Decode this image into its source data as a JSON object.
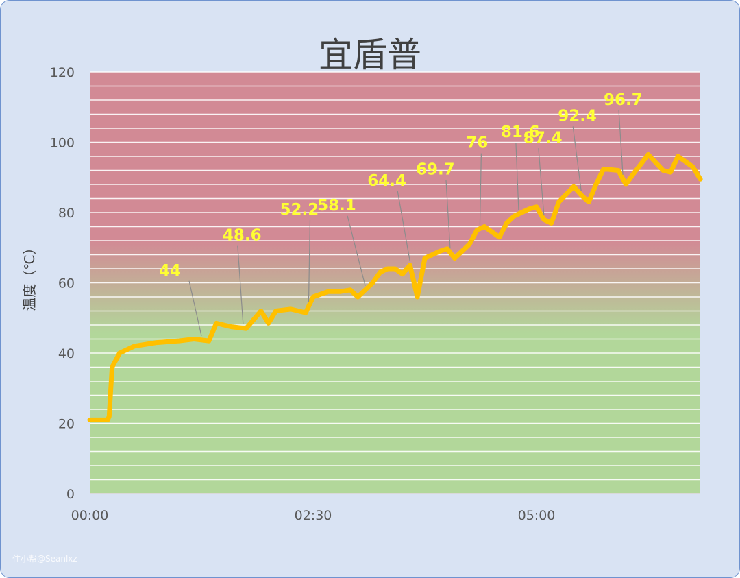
{
  "chart_data": {
    "type": "line",
    "title": "宜盾普",
    "ylabel": "温度（℃）",
    "xlabel": "",
    "ylim": [
      0,
      120
    ],
    "yticks": [
      "0",
      "20",
      "40",
      "60",
      "80",
      "100",
      "120"
    ],
    "xticks": [
      "00:00",
      "02:30",
      "05:00"
    ],
    "grid": true,
    "background_bands": {
      "top_color": "#d28a95",
      "bottom_color": "#b2d79a"
    },
    "line_color": "#ffc000",
    "label_color": "#ffff33",
    "series": [
      {
        "name": "",
        "x": [
          "00:00",
          "00:12",
          "00:13",
          "00:15",
          "00:20",
          "00:30",
          "00:45",
          "01:00",
          "01:10",
          "01:20",
          "01:25",
          "01:35",
          "01:45",
          "01:55",
          "02:00",
          "02:05",
          "02:15",
          "02:25",
          "02:30",
          "02:40",
          "02:48",
          "02:55",
          "03:00",
          "03:10",
          "03:15",
          "03:20",
          "03:25",
          "03:30",
          "03:35",
          "03:40",
          "03:45",
          "03:55",
          "04:00",
          "04:05",
          "04:15",
          "04:20",
          "04:25",
          "04:35",
          "04:40",
          "04:45",
          "04:55",
          "05:00",
          "05:05",
          "05:10",
          "05:15",
          "05:25",
          "05:30",
          "05:35",
          "05:40",
          "05:45",
          "05:55",
          "06:00",
          "06:05",
          "06:15",
          "06:25",
          "06:30",
          "06:35",
          "06:45",
          "06:50"
        ],
        "values": [
          21,
          21,
          22,
          36,
          40,
          42,
          43,
          43.5,
          44,
          43.5,
          48.5,
          47.5,
          47,
          52,
          48.5,
          52,
          52.5,
          51.5,
          56,
          57.5,
          57.5,
          58,
          56,
          60,
          63,
          64,
          64,
          62.5,
          65,
          56,
          67,
          69,
          69.7,
          67,
          71,
          75,
          76,
          73,
          77,
          79,
          81,
          81.6,
          78,
          77,
          83,
          87.4,
          85,
          83,
          88,
          92.4,
          92,
          88,
          91,
          96.5,
          92,
          91.5,
          96,
          93,
          89.5
        ]
      }
    ],
    "data_labels": [
      {
        "text": "44",
        "value": 44
      },
      {
        "text": "48.6",
        "value": 48.6
      },
      {
        "text": "52.2",
        "value": 52.2
      },
      {
        "text": "58.1",
        "value": 58.1
      },
      {
        "text": "64.4",
        "value": 64.4
      },
      {
        "text": "69.7",
        "value": 69.7
      },
      {
        "text": "76",
        "value": 76
      },
      {
        "text": "81.6",
        "value": 81.6
      },
      {
        "text": "87.4",
        "value": 87.4
      },
      {
        "text": "92.4",
        "value": 92.4
      },
      {
        "text": "96.7",
        "value": 96.7
      }
    ]
  },
  "watermark": "住小帮@Seanlxz"
}
